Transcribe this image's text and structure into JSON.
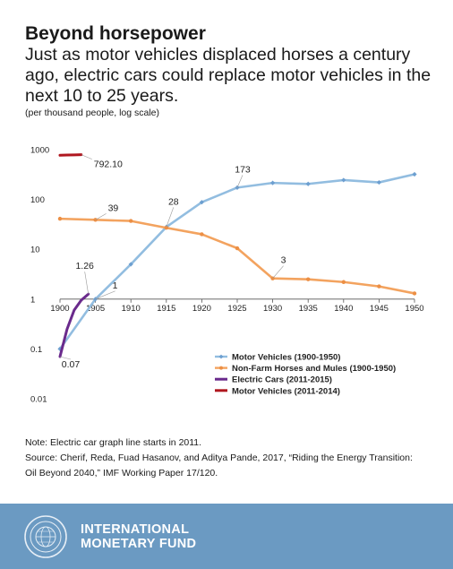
{
  "header": {
    "title": "Beyond horsepower",
    "subtitle": "Just as motor vehicles displaced horses a century ago, electric cars could replace motor vehicles in the next 10 to 25 years.",
    "unit_note": "(per thousand people, log scale)"
  },
  "chart_data": {
    "type": "line",
    "y_scale": "log",
    "ylim": [
      0.01,
      1000
    ],
    "xlim": [
      1900,
      1950
    ],
    "x_ticks": [
      "1900",
      "1905",
      "1910",
      "1915",
      "1920",
      "1925",
      "1930",
      "1935",
      "1940",
      "1945",
      "1950"
    ],
    "y_ticks": [
      "1000",
      "100",
      "10",
      "1",
      "0.1",
      "0.01"
    ],
    "grid": false,
    "legend_position": "bottom-right",
    "series": [
      {
        "name": "Motor Vehicles (1900-1950)",
        "color": "#92bde0",
        "marker": "diamond",
        "x": [
          1900,
          1905,
          1910,
          1915,
          1920,
          1925,
          1930,
          1935,
          1940,
          1945,
          1950
        ],
        "values": [
          0.1,
          1,
          5,
          28,
          88,
          173,
          215,
          205,
          245,
          220,
          320
        ]
      },
      {
        "name": "Non-Farm Horses and Mules (1900-1950)",
        "color": "#f3a35f",
        "marker": "circle",
        "x": [
          1900,
          1905,
          1910,
          1915,
          1920,
          1925,
          1930,
          1935,
          1940,
          1945,
          1950
        ],
        "values": [
          41,
          39,
          37,
          27,
          20,
          10.5,
          2.6,
          2.5,
          2.2,
          1.8,
          1.3
        ]
      },
      {
        "name": "Electric Cars (2011-2015)",
        "color": "#6a2a8c",
        "marker": "none",
        "x": [
          1900,
          1901,
          1902,
          1903,
          1904
        ],
        "values": [
          0.07,
          0.25,
          0.6,
          0.95,
          1.26
        ]
      },
      {
        "name": "Motor Vehicles (2011-2014)",
        "color": "#b0171f",
        "marker": "none",
        "x": [
          1900,
          1901,
          1902,
          1903
        ],
        "values": [
          770,
          780,
          785,
          792.1
        ]
      }
    ],
    "annotations": [
      {
        "text": "792.10",
        "series": 3,
        "point": 3
      },
      {
        "text": "173",
        "series": 0,
        "point": 5
      },
      {
        "text": "28",
        "series": 0,
        "point": 3
      },
      {
        "text": "1",
        "series": 0,
        "point": 1
      },
      {
        "text": "39",
        "series": 1,
        "point": 1
      },
      {
        "text": "3",
        "series": 1,
        "point": 6
      },
      {
        "text": "1.26",
        "series": 2,
        "point": 4
      },
      {
        "text": "0.07",
        "series": 2,
        "point": 0
      }
    ]
  },
  "notes": {
    "note": "Note: Electric car graph line starts in 2011.",
    "source_line1": "Source: Cherif, Reda, Fuad Hasanov, and Aditya Pande, 2017, “Riding the Energy Transition:",
    "source_line2": "Oil Beyond 2040,” IMF Working Paper 17/120."
  },
  "footer": {
    "org_line1": "INTERNATIONAL",
    "org_line2": "MONETARY FUND",
    "background": "#6b9ac2"
  }
}
